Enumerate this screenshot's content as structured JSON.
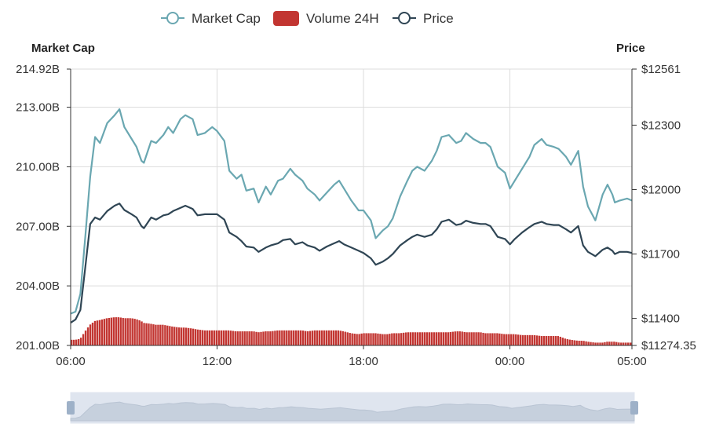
{
  "colors": {
    "market_cap": "#6aa7b1",
    "volume": "#c23531",
    "price": "#2f4554",
    "grid": "#dcdcdc",
    "axis": "#333333",
    "zoom_bg": "#dfe5ef",
    "zoom_fill": "#c6d0dd",
    "zoom_border": "#9eb1c8"
  },
  "legend": [
    {
      "name": "Market Cap",
      "icon": "line-circle-icon",
      "color": "#6aa7b1"
    },
    {
      "name": "Volume 24H",
      "icon": "rounded-rect-icon",
      "color": "#c23531"
    },
    {
      "name": "Price",
      "icon": "line-circle-icon",
      "color": "#2f4554"
    }
  ],
  "chart_data": {
    "type": "line",
    "title": "",
    "y_left_title": "Market Cap",
    "y_right_title": "Price",
    "x_tick_labels": [
      "06:00",
      "12:00",
      "18:00",
      "00:00",
      "05:00"
    ],
    "x_ticks_hours": [
      0,
      6,
      12,
      18,
      23
    ],
    "y_left_ticks": [
      "214.92B",
      "213.00B",
      "210.00B",
      "207.00B",
      "204.00B",
      "201.00B"
    ],
    "y_left_tick_values": [
      214.92,
      213,
      210,
      207,
      204,
      201
    ],
    "y_left_range": [
      201,
      214.92
    ],
    "y_right_ticks": [
      "$12561",
      "$12300",
      "$12000",
      "$11700",
      "$11400",
      "$11274.35"
    ],
    "y_right_tick_values": [
      12561,
      12300,
      12000,
      11700,
      11400,
      11274.35
    ],
    "y_right_range": [
      11274.35,
      12561
    ],
    "grid": true,
    "legend_position": "top-center",
    "x_hours_since_06": [
      0,
      0.2,
      0.4,
      0.6,
      0.8,
      1.0,
      1.2,
      1.5,
      1.8,
      2.0,
      2.2,
      2.5,
      2.7,
      2.9,
      3.0,
      3.3,
      3.5,
      3.8,
      4.0,
      4.2,
      4.5,
      4.7,
      5.0,
      5.2,
      5.5,
      5.8,
      6.0,
      6.3,
      6.5,
      6.8,
      7.0,
      7.2,
      7.5,
      7.7,
      8.0,
      8.2,
      8.5,
      8.7,
      9.0,
      9.2,
      9.5,
      9.7,
      10.0,
      10.2,
      10.5,
      10.8,
      11.0,
      11.2,
      11.5,
      11.8,
      12.0,
      12.3,
      12.5,
      12.8,
      13.0,
      13.2,
      13.5,
      13.8,
      14.0,
      14.2,
      14.5,
      14.8,
      15.0,
      15.2,
      15.5,
      15.8,
      16.0,
      16.2,
      16.5,
      16.8,
      17.0,
      17.2,
      17.5,
      17.8,
      18.0,
      18.2,
      18.5,
      18.8,
      19.0,
      19.3,
      19.5,
      19.8,
      20.0,
      20.3,
      20.5,
      20.8,
      21.0,
      21.2,
      21.5,
      21.8,
      22.0,
      22.2,
      22.3,
      22.5,
      22.8,
      23.0
    ],
    "series": [
      {
        "name": "Market Cap",
        "axis": "left",
        "values": [
          202.6,
          202.7,
          203.6,
          206.5,
          209.5,
          211.5,
          211.2,
          212.2,
          212.6,
          212.9,
          212.0,
          211.4,
          211.0,
          210.3,
          210.2,
          211.3,
          211.2,
          211.6,
          212.0,
          211.7,
          212.4,
          212.6,
          212.4,
          211.6,
          211.7,
          212.0,
          211.8,
          211.3,
          209.8,
          209.4,
          209.6,
          208.8,
          208.9,
          208.2,
          209.0,
          208.6,
          209.3,
          209.4,
          209.9,
          209.6,
          209.3,
          208.9,
          208.6,
          208.3,
          208.7,
          209.1,
          209.3,
          208.9,
          208.3,
          207.8,
          207.8,
          207.3,
          206.4,
          206.8,
          207.0,
          207.4,
          208.5,
          209.3,
          209.8,
          210.0,
          209.8,
          210.3,
          210.8,
          211.5,
          211.6,
          211.2,
          211.3,
          211.7,
          211.4,
          211.2,
          211.2,
          211.0,
          210.0,
          209.7,
          208.9,
          209.3,
          209.9,
          210.5,
          211.1,
          211.4,
          211.1,
          211.0,
          210.9,
          210.5,
          210.1,
          210.8,
          209.0,
          208.0,
          207.3,
          208.6,
          209.1,
          208.6,
          208.2,
          208.3,
          208.4,
          208.3
        ]
      },
      {
        "name": "Price",
        "axis": "right",
        "values": [
          11380,
          11395,
          11440,
          11640,
          11840,
          11870,
          11860,
          11900,
          11925,
          11935,
          11905,
          11885,
          11870,
          11830,
          11820,
          11870,
          11860,
          11880,
          11885,
          11900,
          11915,
          11925,
          11910,
          11880,
          11885,
          11885,
          11885,
          11860,
          11800,
          11780,
          11760,
          11735,
          11730,
          11710,
          11730,
          11740,
          11750,
          11765,
          11770,
          11745,
          11755,
          11740,
          11730,
          11715,
          11735,
          11750,
          11760,
          11745,
          11730,
          11715,
          11705,
          11680,
          11650,
          11665,
          11680,
          11700,
          11740,
          11765,
          11780,
          11790,
          11780,
          11790,
          11815,
          11850,
          11860,
          11835,
          11840,
          11855,
          11845,
          11840,
          11840,
          11830,
          11780,
          11770,
          11745,
          11770,
          11800,
          11825,
          11840,
          11850,
          11840,
          11835,
          11835,
          11815,
          11800,
          11830,
          11740,
          11710,
          11690,
          11720,
          11730,
          11715,
          11700,
          11710,
          11710,
          11705
        ]
      },
      {
        "name": "Volume 24H",
        "axis": "volume",
        "values": [
          0.6,
          0.6,
          0.7,
          1.5,
          2.2,
          2.6,
          2.7,
          2.9,
          3.0,
          3.0,
          2.9,
          2.9,
          2.8,
          2.6,
          2.4,
          2.3,
          2.2,
          2.2,
          2.1,
          2.0,
          1.9,
          1.9,
          1.8,
          1.7,
          1.6,
          1.6,
          1.6,
          1.6,
          1.6,
          1.5,
          1.5,
          1.5,
          1.5,
          1.4,
          1.5,
          1.5,
          1.6,
          1.6,
          1.6,
          1.6,
          1.6,
          1.5,
          1.6,
          1.6,
          1.6,
          1.6,
          1.6,
          1.5,
          1.3,
          1.2,
          1.3,
          1.3,
          1.3,
          1.2,
          1.2,
          1.3,
          1.3,
          1.4,
          1.4,
          1.4,
          1.4,
          1.4,
          1.4,
          1.4,
          1.4,
          1.5,
          1.5,
          1.4,
          1.4,
          1.4,
          1.3,
          1.3,
          1.3,
          1.2,
          1.2,
          1.2,
          1.1,
          1.1,
          1.1,
          1.0,
          1.0,
          1.0,
          1.0,
          0.7,
          0.6,
          0.5,
          0.5,
          0.4,
          0.3,
          0.3,
          0.4,
          0.4,
          0.4,
          0.3,
          0.3,
          0.3
        ]
      }
    ]
  }
}
